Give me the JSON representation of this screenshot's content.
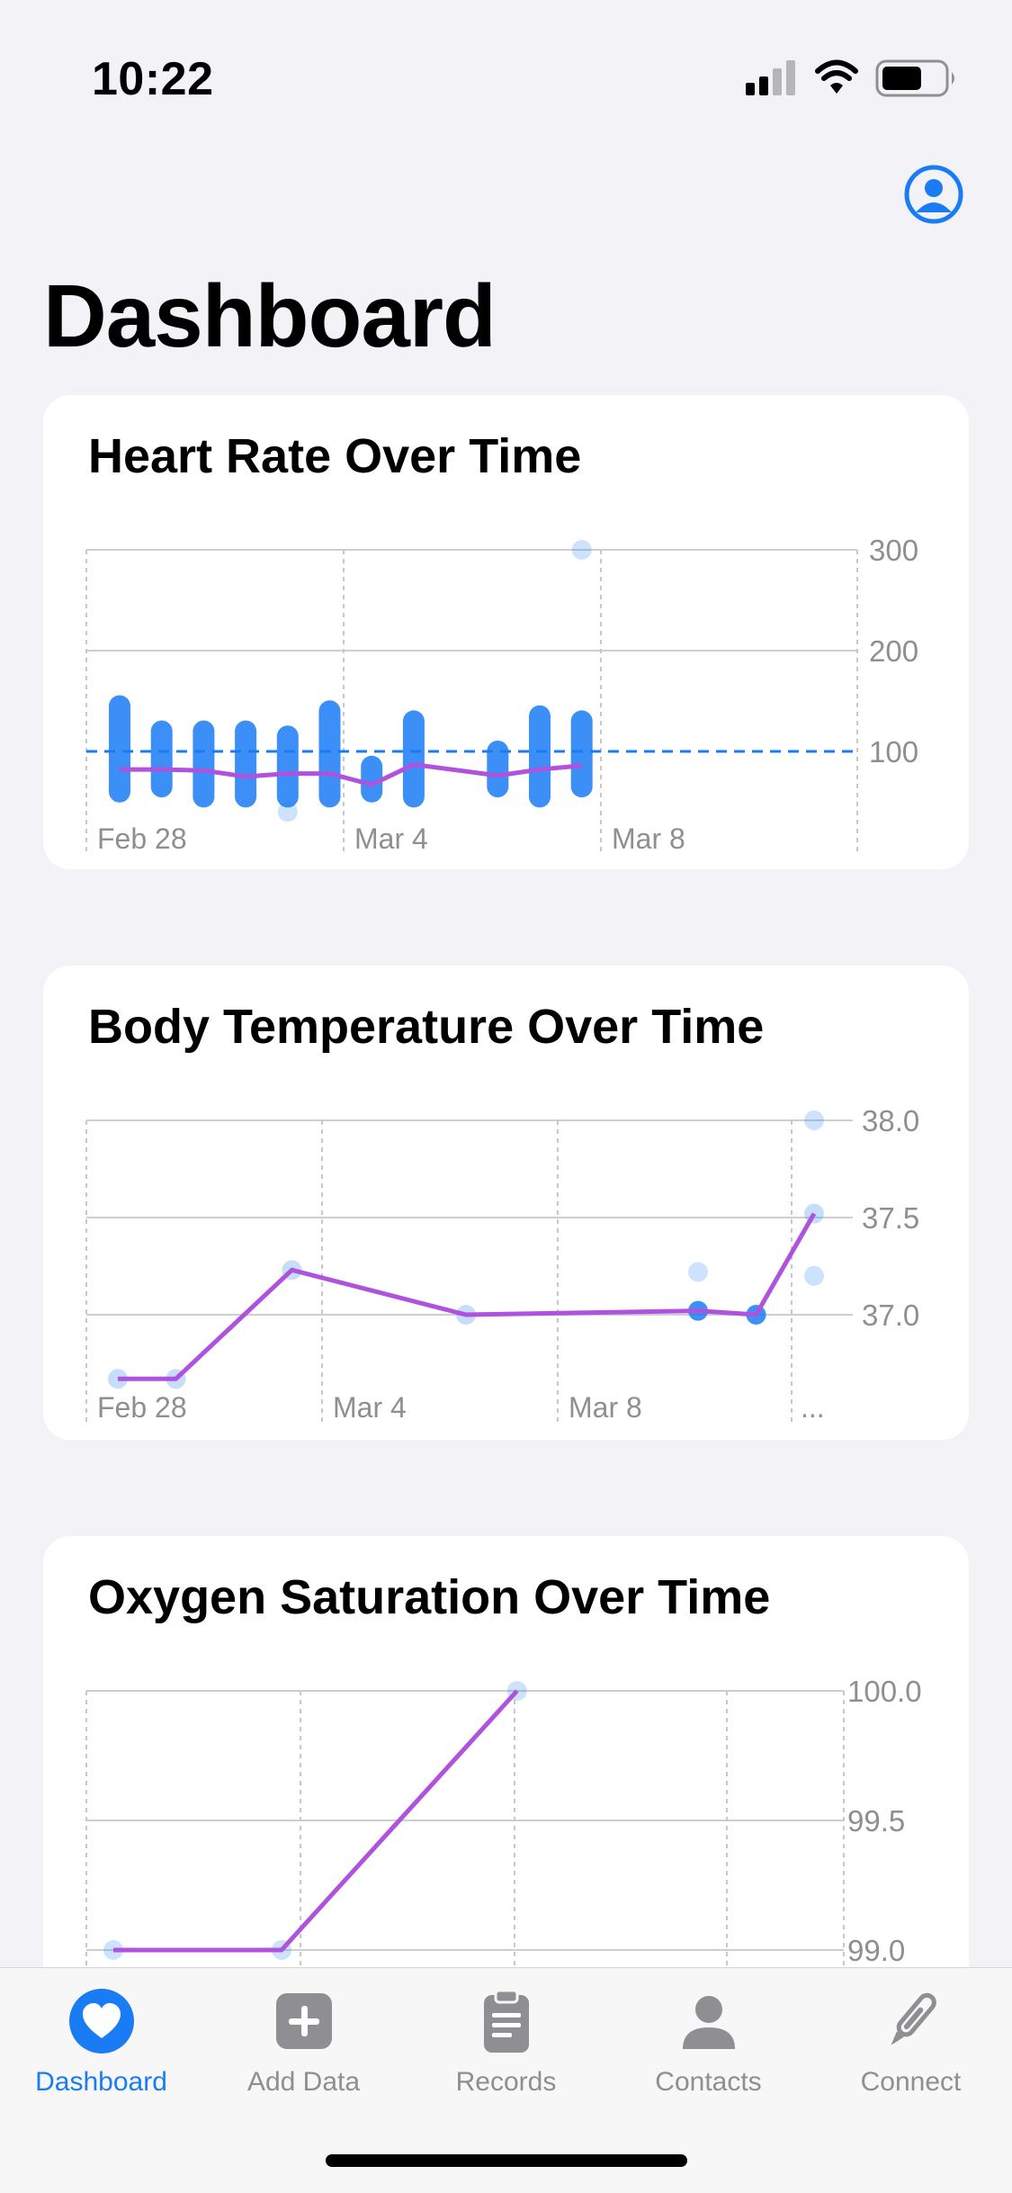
{
  "status_bar": {
    "time": "10:22",
    "battery_fraction": 0.65
  },
  "header": {
    "title": "Dashboard",
    "profile_icon": "person-circle-icon"
  },
  "colors": {
    "accent": "#1a7cf5",
    "line": "#af52de",
    "point": "#1a7cf5",
    "tab_inactive": "#8e8e93"
  },
  "cards": {
    "heart_rate": {
      "title": "Heart Rate Over Time"
    },
    "body_temp": {
      "title": "Body Temperature Over Time"
    },
    "oxygen": {
      "title": "Oxygen Saturation Over Time"
    }
  },
  "chart_data": [
    {
      "type": "scatter",
      "title": "Heart Rate Over Time",
      "x_ticks": [
        "Feb 28",
        "Mar 4",
        "Mar 8"
      ],
      "y_ticks": [
        100,
        200,
        300
      ],
      "ylim": [
        0,
        300
      ],
      "reference_line": 100,
      "days": [
        "Feb 28",
        "Mar 1",
        "Mar 2",
        "Mar 3",
        "Mar 4",
        "Mar 5",
        "Mar 6",
        "Mar 7",
        "Mar 9",
        "Mar 10",
        "Mar 11"
      ],
      "ranges": [
        [
          60,
          145
        ],
        [
          65,
          120
        ],
        [
          55,
          120
        ],
        [
          55,
          120
        ],
        [
          55,
          115
        ],
        [
          55,
          140
        ],
        [
          60,
          85
        ],
        [
          55,
          130
        ],
        [
          65,
          100
        ],
        [
          55,
          135
        ],
        [
          65,
          130
        ]
      ],
      "averages": [
        82,
        82,
        81,
        75,
        78,
        78,
        67,
        87,
        76,
        82,
        86
      ],
      "outliers": [
        [
          "Mar 4",
          40
        ],
        [
          "Mar 11",
          300
        ]
      ]
    },
    {
      "type": "scatter",
      "title": "Body Temperature Over Time",
      "x_ticks": [
        "Feb 28",
        "Mar 4",
        "Mar 8",
        "..."
      ],
      "y_ticks": [
        37.0,
        37.5,
        38.0
      ],
      "ylim": [
        36.5,
        38.0
      ],
      "series": [
        {
          "x": [
            "Feb 28",
            "Mar 1",
            "Mar 3",
            "Mar 6",
            "Mar 10",
            "Mar 11",
            "Mar 12"
          ],
          "values": [
            36.67,
            36.67,
            37.23,
            37.0,
            37.02,
            37.0,
            37.52
          ]
        }
      ],
      "extra_points": [
        [
          "Mar 10",
          37.22
        ],
        [
          "Mar 12",
          38.0
        ],
        [
          "Mar 12",
          37.2
        ]
      ]
    },
    {
      "type": "scatter",
      "title": "Oxygen Saturation Over Time",
      "y_ticks": [
        99.0,
        99.5,
        100.0
      ],
      "ylim": [
        99.0,
        100.0
      ],
      "series": [
        {
          "x": [
            "Feb 28",
            "Mar 5",
            "Mar 12"
          ],
          "values": [
            99.0,
            99.0,
            100.0
          ]
        }
      ]
    }
  ],
  "tabbar": {
    "items": [
      {
        "label": "Dashboard",
        "icon": "heart-icon",
        "active": true
      },
      {
        "label": "Add Data",
        "icon": "plus-square-icon",
        "active": false
      },
      {
        "label": "Records",
        "icon": "clipboard-icon",
        "active": false
      },
      {
        "label": "Contacts",
        "icon": "person-icon",
        "active": false
      },
      {
        "label": "Connect",
        "icon": "thermometer-icon",
        "active": false
      }
    ]
  }
}
